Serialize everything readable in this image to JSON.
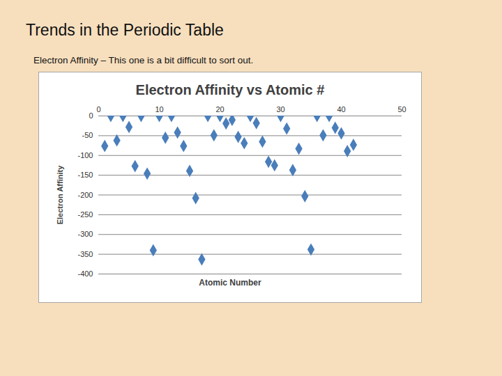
{
  "slide": {
    "title": "Trends in the Periodic Table",
    "subtitle": "Electron Affinity – This one is a bit difficult to sort out."
  },
  "chart_data": {
    "type": "scatter",
    "title": "Electron Affinity vs Atomic #",
    "xlabel": "Atomic Number",
    "ylabel": "Electron Affinity",
    "x": [
      1,
      2,
      3,
      4,
      5,
      6,
      7,
      8,
      9,
      10,
      11,
      12,
      13,
      14,
      15,
      16,
      17,
      18,
      19,
      20,
      21,
      22,
      23,
      24,
      25,
      26,
      27,
      28,
      29,
      30,
      31,
      32,
      33,
      34,
      35,
      36,
      37,
      38,
      39,
      40,
      41,
      42
    ],
    "values": [
      -76,
      0,
      -62,
      0,
      -28,
      -127,
      0,
      -146,
      -340,
      0,
      -55,
      0,
      -42,
      -76,
      -139,
      -208,
      -363,
      0,
      -49,
      0,
      -19,
      -10,
      -53,
      -69,
      0,
      -18,
      -65,
      -116,
      -125,
      0,
      -32,
      -137,
      -83,
      -203,
      -338,
      0,
      -49,
      0,
      -30,
      -44,
      -89,
      -73
    ],
    "color": "#4a7ebb",
    "marker": "diamond",
    "xlim": [
      0,
      50
    ],
    "xticks": [
      0,
      10,
      20,
      30,
      40,
      50
    ],
    "ylim": [
      -400,
      0
    ],
    "yticks": [
      -400,
      -350,
      -300,
      -250,
      -200,
      -150,
      -100,
      -50,
      0
    ],
    "grid": true
  }
}
